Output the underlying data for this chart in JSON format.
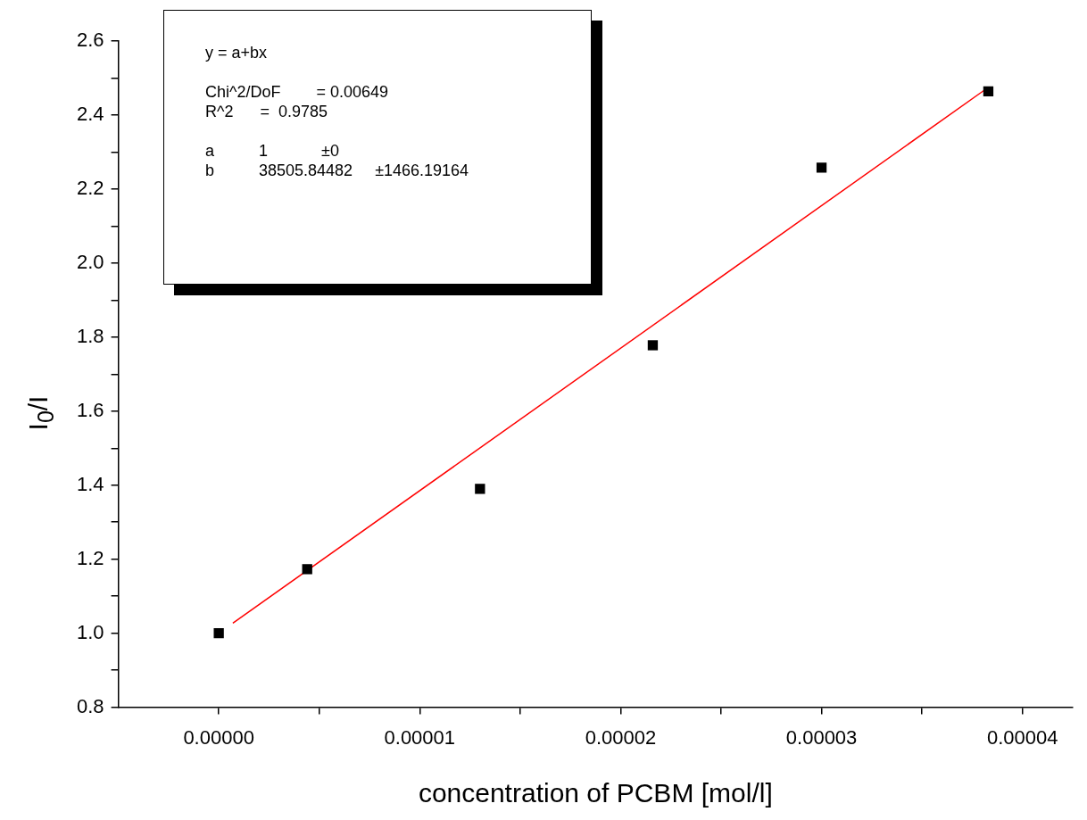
{
  "chart_data": {
    "type": "scatter",
    "xlabel": "concentration of PCBM [mol/l]",
    "ylabel": "I$_{0}$/I",
    "x": [
      0,
      4.4e-06,
      1.3e-05,
      2.16e-05,
      3e-05,
      3.83e-05
    ],
    "series": [
      {
        "color": "#000000",
        "marker": "square",
        "values": [
          1.0,
          1.173,
          1.39,
          1.778,
          2.258,
          2.464
        ]
      },
      {
        "type": "line",
        "color": "#ff0000",
        "x": [
          7e-07,
          3.82e-05
        ],
        "values": [
          1.027,
          2.471
        ],
        "marker": "none",
        "line_style": "solid"
      }
    ],
    "xlim": [
      -5e-06,
      4.25e-05
    ],
    "ylim": [
      0.8,
      2.6
    ],
    "xticks": [
      {
        "value": 0,
        "label": "0.00000"
      },
      {
        "value": 5e-06,
        "label": null
      },
      {
        "value": 1e-05,
        "label": "0.00001"
      },
      {
        "value": 1.5e-05,
        "label": null
      },
      {
        "value": 2e-05,
        "label": "0.00002"
      },
      {
        "value": 2.5e-05,
        "label": null
      },
      {
        "value": 3e-05,
        "label": "0.00003"
      },
      {
        "value": 3.5e-05,
        "label": null
      },
      {
        "value": 4e-05,
        "label": "0.00004"
      }
    ],
    "yticks": [
      {
        "value": 0.8,
        "label": "0.8"
      },
      {
        "value": 0.9,
        "label": null
      },
      {
        "value": 1.0,
        "label": "1.0"
      },
      {
        "value": 1.1,
        "label": null
      },
      {
        "value": 1.2,
        "label": "1.2"
      },
      {
        "value": 1.3,
        "label": null
      },
      {
        "value": 1.4,
        "label": "1.4"
      },
      {
        "value": 1.5,
        "label": null
      },
      {
        "value": 1.6,
        "label": "1.6"
      },
      {
        "value": 1.7,
        "label": null
      },
      {
        "value": 1.8,
        "label": "1.8"
      },
      {
        "value": 1.9,
        "label": null
      },
      {
        "value": 2.0,
        "label": "2.0"
      },
      {
        "value": 2.1,
        "label": null
      },
      {
        "value": 2.2,
        "label": "2.2"
      },
      {
        "value": 2.3,
        "label": null
      },
      {
        "value": 2.4,
        "label": "2.4"
      },
      {
        "value": 2.5,
        "label": null
      },
      {
        "value": 2.6,
        "label": "2.6"
      }
    ],
    "grid": false,
    "legend": false,
    "annotations": [
      "y = a+bx",
      "Chi^2/DoF        = 0.00649",
      "R^2      =  0.9785",
      "a          1            ±0",
      "b          38505.84482     ±1466.19164"
    ]
  }
}
